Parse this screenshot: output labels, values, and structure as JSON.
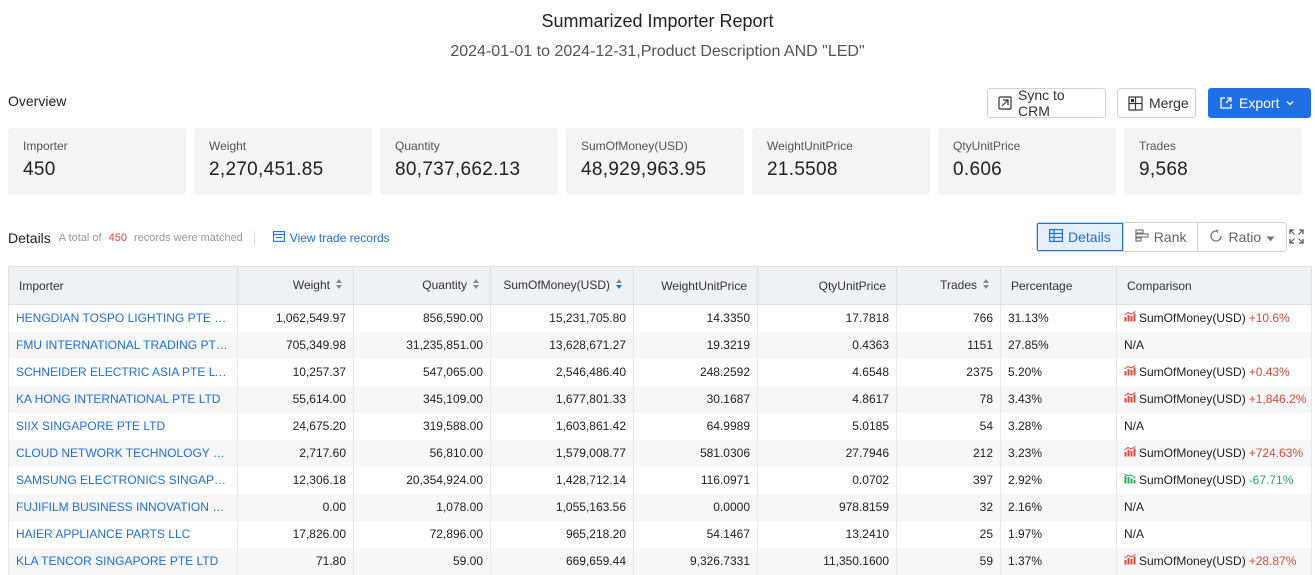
{
  "header": {
    "title": "Summarized Importer Report",
    "subtitle": "2024-01-01 to 2024-12-31,Product Description AND \"LED\""
  },
  "overview": {
    "label": "Overview",
    "buttons": {
      "sync": "Sync to CRM",
      "merge": "Merge",
      "export": "Export"
    },
    "cards": [
      {
        "label": "Importer",
        "value": "450"
      },
      {
        "label": "Weight",
        "value": "2,270,451.85"
      },
      {
        "label": "Quantity",
        "value": "80,737,662.13"
      },
      {
        "label": "SumOfMoney(USD)",
        "value": "48,929,963.95"
      },
      {
        "label": "WeightUnitPrice",
        "value": "21.5508"
      },
      {
        "label": "QtyUnitPrice",
        "value": "0.606"
      },
      {
        "label": "Trades",
        "value": "9,568"
      }
    ]
  },
  "details": {
    "label": "Details",
    "note_prefix": "A total of",
    "count": "450",
    "note_suffix": "records were matched",
    "view_link": "View trade records",
    "tabs": [
      "Details",
      "Rank",
      "Ratio"
    ]
  },
  "colors": {
    "accent": "#1f6fe5",
    "up": "#e5483b",
    "down": "#2ba85c"
  },
  "table": {
    "columns": [
      "Importer",
      "Weight",
      "Quantity",
      "SumOfMoney(USD)",
      "WeightUnitPrice",
      "QtyUnitPrice",
      "Trades",
      "Percentage",
      "Comparison"
    ],
    "rows": [
      {
        "importer": "HENGDIAN TOSPO LIGHTING PTE LTD",
        "weight": "1,062,549.97",
        "quantity": "856,590.00",
        "money": "15,231,705.80",
        "wup": "14.3350",
        "qup": "17.7818",
        "trades": "766",
        "pct": "31.13%",
        "cmp_label": "SumOfMoney(USD)",
        "cmp_value": "+10.6%",
        "cmp_dir": "up"
      },
      {
        "importer": "FMU INTERNATIONAL TRADING PTE LTD",
        "weight": "705,349.98",
        "quantity": "31,235,851.00",
        "money": "13,628,671.27",
        "wup": "19.3219",
        "qup": "0.4363",
        "trades": "1151",
        "pct": "27.85%",
        "cmp_label": "N/A",
        "cmp_value": "",
        "cmp_dir": "none"
      },
      {
        "importer": "SCHNEIDER ELECTRIC ASIA PTE LTD",
        "weight": "10,257.37",
        "quantity": "547,065.00",
        "money": "2,546,486.40",
        "wup": "248.2592",
        "qup": "4.6548",
        "trades": "2375",
        "pct": "5.20%",
        "cmp_label": "SumOfMoney(USD)",
        "cmp_value": "+0.43%",
        "cmp_dir": "up"
      },
      {
        "importer": "KA HONG INTERNATIONAL PTE LTD",
        "weight": "55,614.00",
        "quantity": "345,109.00",
        "money": "1,677,801.33",
        "wup": "30.1687",
        "qup": "4.8617",
        "trades": "78",
        "pct": "3.43%",
        "cmp_label": "SumOfMoney(USD)",
        "cmp_value": "+1,846.2%",
        "cmp_dir": "up"
      },
      {
        "importer": "SIIX SINGAPORE PTE LTD",
        "weight": "24,675.20",
        "quantity": "319,588.00",
        "money": "1,603,861.42",
        "wup": "64.9989",
        "qup": "5.0185",
        "trades": "54",
        "pct": "3.28%",
        "cmp_label": "N/A",
        "cmp_value": "",
        "cmp_dir": "none"
      },
      {
        "importer": "CLOUD NETWORK TECHNOLOGY SINGA...",
        "weight": "2,717.60",
        "quantity": "56,810.00",
        "money": "1,579,008.77",
        "wup": "581.0306",
        "qup": "27.7946",
        "trades": "212",
        "pct": "3.23%",
        "cmp_label": "SumOfMoney(USD)",
        "cmp_value": "+724.63%",
        "cmp_dir": "up"
      },
      {
        "importer": "SAMSUNG ELECTRONICS SINGAPORE P...",
        "weight": "12,306.18",
        "quantity": "20,354,924.00",
        "money": "1,428,712.14",
        "wup": "116.0971",
        "qup": "0.0702",
        "trades": "397",
        "pct": "2.92%",
        "cmp_label": "SumOfMoney(USD)",
        "cmp_value": "-67.71%",
        "cmp_dir": "down"
      },
      {
        "importer": "FUJIFILM BUSINESS INNOVATION CORP",
        "weight": "0.00",
        "quantity": "1,078.00",
        "money": "1,055,163.56",
        "wup": "0.0000",
        "qup": "978.8159",
        "trades": "32",
        "pct": "2.16%",
        "cmp_label": "N/A",
        "cmp_value": "",
        "cmp_dir": "none"
      },
      {
        "importer": "HAIER APPLIANCE PARTS LLC",
        "weight": "17,826.00",
        "quantity": "72,896.00",
        "money": "965,218.20",
        "wup": "54.1467",
        "qup": "13.2410",
        "trades": "25",
        "pct": "1.97%",
        "cmp_label": "N/A",
        "cmp_value": "",
        "cmp_dir": "none"
      },
      {
        "importer": "KLA TENCOR SINGAPORE PTE LTD",
        "weight": "71.80",
        "quantity": "59.00",
        "money": "669,659.44",
        "wup": "9,326.7331",
        "qup": "11,350.1600",
        "trades": "59",
        "pct": "1.37%",
        "cmp_label": "SumOfMoney(USD)",
        "cmp_value": "+28.87%",
        "cmp_dir": "up"
      }
    ]
  }
}
